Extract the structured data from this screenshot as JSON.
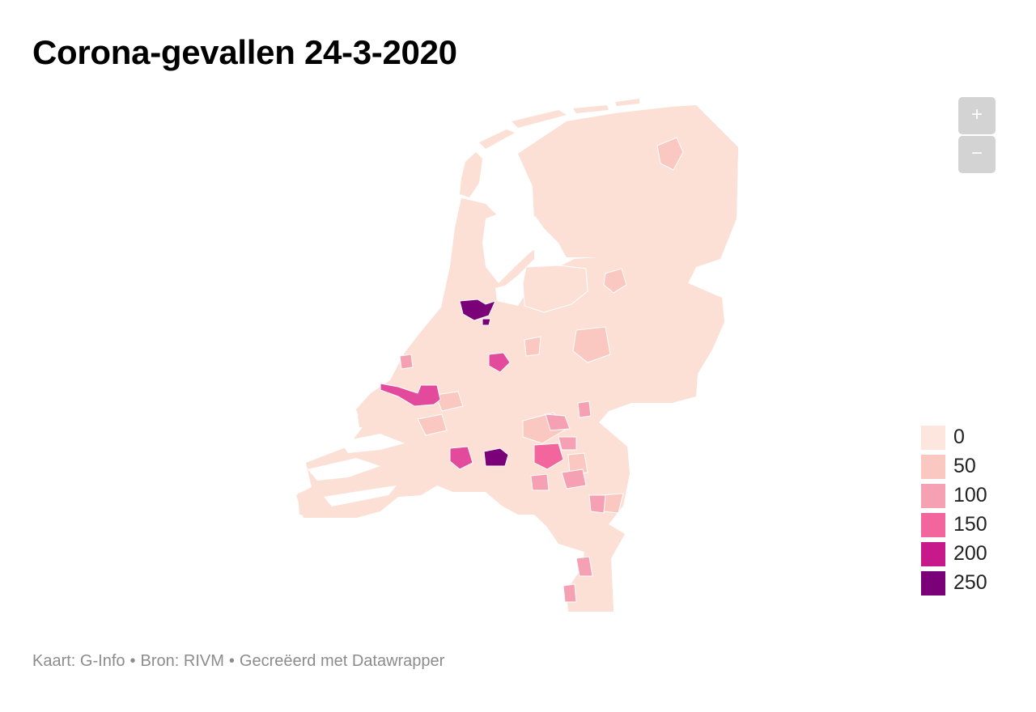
{
  "title": "Corona-gevallen 24-3-2020",
  "zoom": {
    "in_label": "+",
    "out_label": "−"
  },
  "legend": {
    "items": [
      {
        "label": "0",
        "color": "#fce6de"
      },
      {
        "label": "50",
        "color": "#fac8c0"
      },
      {
        "label": "100",
        "color": "#f6a0b4"
      },
      {
        "label": "150",
        "color": "#f2659d"
      },
      {
        "label": "200",
        "color": "#c8198a"
      },
      {
        "label": "250",
        "color": "#7a0177"
      }
    ]
  },
  "map": {
    "base_color": "#fce0d6",
    "border_color": "#ffffff",
    "hotspot_colors": {
      "amsterdam": "#7a0177",
      "tilburg": "#7a0177",
      "rotterdam": "#e34a9b",
      "utrecht": "#e34a9b",
      "breda": "#e34a9b",
      "eindhoven": "#f2659d",
      "den_haag": "#f2659d"
    }
  },
  "footer": {
    "map_credit": "Kaart: G-Info",
    "source": "Bron: RIVM",
    "made_with": "Gecreëerd met Datawrapper",
    "separator": "•"
  }
}
